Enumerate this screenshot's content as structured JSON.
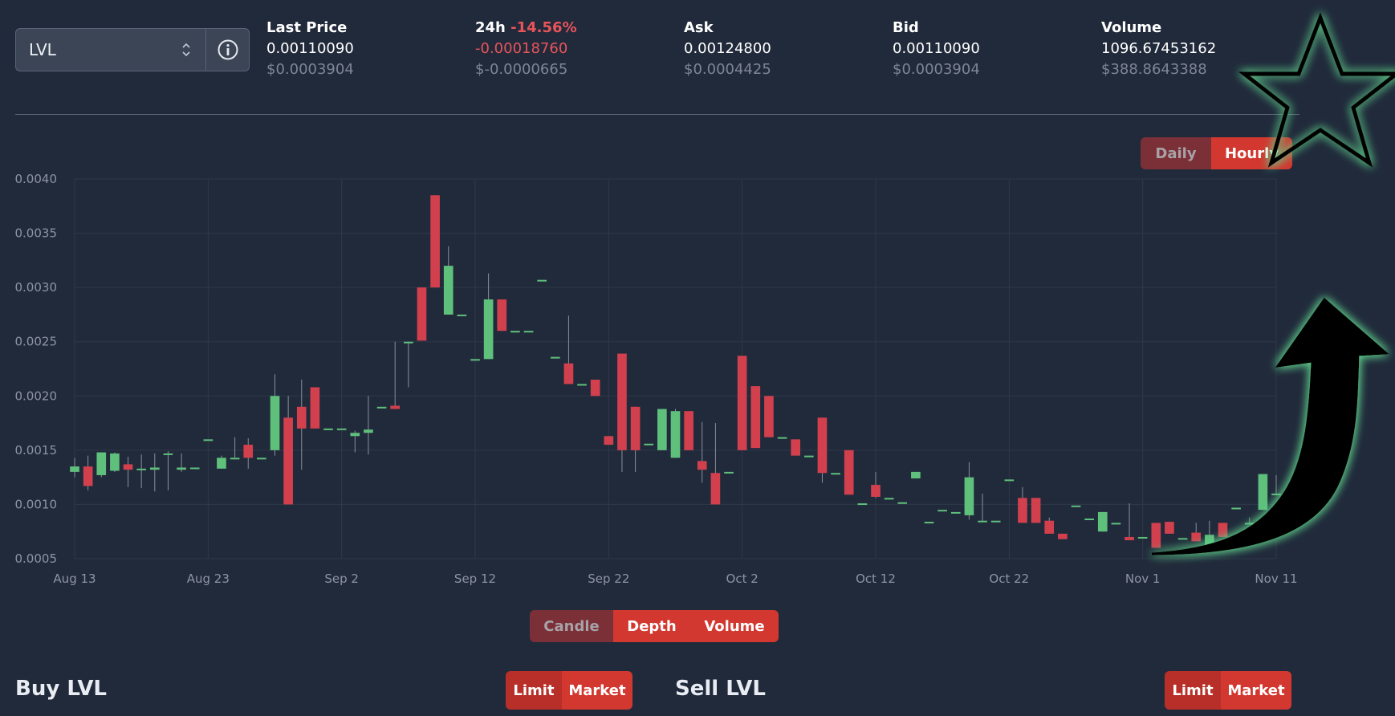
{
  "pair": {
    "symbol": "LVL"
  },
  "stats": {
    "last_price": {
      "label": "Last Price",
      "value": "0.00110090",
      "usd": "$0.0003904"
    },
    "change_24h": {
      "label": "24h",
      "percent": "-14.56%",
      "value": "-0.00018760",
      "usd": "$-0.0000665"
    },
    "ask": {
      "label": "Ask",
      "value": "0.00124800",
      "usd": "$0.0004425"
    },
    "bid": {
      "label": "Bid",
      "value": "0.00110090",
      "usd": "$0.0003904"
    },
    "volume": {
      "label": "Volume",
      "value": "1096.67453162",
      "usd": "$388.8643388"
    }
  },
  "interval_toggle": {
    "daily": "Daily",
    "hourly": "Hourly",
    "active": "Hourly"
  },
  "chart_mode": {
    "candle": "Candle",
    "depth": "Depth",
    "volume": "Volume",
    "active": "Candle"
  },
  "buy": {
    "title": "Buy LVL",
    "limit": "Limit",
    "market": "Market"
  },
  "sell": {
    "title": "Sell LVL",
    "limit": "Limit",
    "market": "Market"
  },
  "colors": {
    "background": "#212a3b",
    "accent": "#d2382f",
    "up_candle": "#5fc07c",
    "down_candle": "#d2404e",
    "negative_text": "#e8545a",
    "grid": "#2f3848",
    "axis_text": "#8d94a3"
  },
  "overlay_icons": [
    "star-outline-icon",
    "curved-up-arrow-icon"
  ],
  "chart_data": {
    "type": "candlestick",
    "ylim": [
      0.0005,
      0.004
    ],
    "y_ticks": [
      "0.0040",
      "0.0035",
      "0.0030",
      "0.0025",
      "0.0020",
      "0.0015",
      "0.0010",
      "0.0005"
    ],
    "x_ticks": [
      "Aug 13",
      "Aug 23",
      "Sep 2",
      "Sep 12",
      "Sep 22",
      "Oct 2",
      "Oct 12",
      "Oct 22",
      "Nov 1",
      "Nov 11"
    ],
    "x_start": "Aug 13",
    "candles": [
      {
        "o": 0.0013,
        "h": 0.00143,
        "l": 0.00125,
        "c": 0.00135
      },
      {
        "o": 0.00135,
        "h": 0.00145,
        "l": 0.00113,
        "c": 0.00117
      },
      {
        "o": 0.00127,
        "h": 0.00148,
        "l": 0.00125,
        "c": 0.00148
      },
      {
        "o": 0.00131,
        "h": 0.00148,
        "l": 0.0013,
        "c": 0.00147
      },
      {
        "o": 0.00137,
        "h": 0.00144,
        "l": 0.00116,
        "c": 0.00132
      },
      {
        "o": 0.00133,
        "h": 0.00146,
        "l": 0.00115,
        "c": 0.00133
      },
      {
        "o": 0.00132,
        "h": 0.00147,
        "l": 0.00112,
        "c": 0.00134
      },
      {
        "o": 0.00147,
        "h": 0.00149,
        "l": 0.00113,
        "c": 0.00147
      },
      {
        "o": 0.00132,
        "h": 0.00147,
        "l": 0.0013,
        "c": 0.00134
      },
      {
        "o": 0.00134,
        "h": 0.00134,
        "l": 0.00134,
        "c": 0.00134
      },
      {
        "o": 0.0016,
        "h": 0.0016,
        "l": 0.0016,
        "c": 0.0016
      },
      {
        "o": 0.00133,
        "h": 0.00145,
        "l": 0.00133,
        "c": 0.00143
      },
      {
        "o": 0.00143,
        "h": 0.00162,
        "l": 0.00143,
        "c": 0.00143
      },
      {
        "o": 0.00155,
        "h": 0.00161,
        "l": 0.00133,
        "c": 0.00143
      },
      {
        "o": 0.00143,
        "h": 0.00143,
        "l": 0.00143,
        "c": 0.00143
      },
      {
        "o": 0.0015,
        "h": 0.0022,
        "l": 0.00145,
        "c": 0.002
      },
      {
        "o": 0.0018,
        "h": 0.002,
        "l": 0.001,
        "c": 0.001
      },
      {
        "o": 0.0019,
        "h": 0.00215,
        "l": 0.00132,
        "c": 0.0017
      },
      {
        "o": 0.00208,
        "h": 0.00208,
        "l": 0.0017,
        "c": 0.0017
      },
      {
        "o": 0.0017,
        "h": 0.0017,
        "l": 0.0017,
        "c": 0.0017
      },
      {
        "o": 0.0017,
        "h": 0.0017,
        "l": 0.0017,
        "c": 0.0017
      },
      {
        "o": 0.00163,
        "h": 0.00168,
        "l": 0.00148,
        "c": 0.00166
      },
      {
        "o": 0.00166,
        "h": 0.002,
        "l": 0.00146,
        "c": 0.00169
      },
      {
        "o": 0.0019,
        "h": 0.0019,
        "l": 0.0019,
        "c": 0.0019
      },
      {
        "o": 0.00191,
        "h": 0.0025,
        "l": 0.00189,
        "c": 0.00188
      },
      {
        "o": 0.0025,
        "h": 0.0025,
        "l": 0.00208,
        "c": 0.0025
      },
      {
        "o": 0.003,
        "h": 0.003,
        "l": 0.00251,
        "c": 0.00251
      },
      {
        "o": 0.00385,
        "h": 0.00385,
        "l": 0.003,
        "c": 0.003
      },
      {
        "o": 0.00275,
        "h": 0.00338,
        "l": 0.00275,
        "c": 0.0032
      },
      {
        "o": 0.00275,
        "h": 0.00275,
        "l": 0.00275,
        "c": 0.00275
      },
      {
        "o": 0.00234,
        "h": 0.00234,
        "l": 0.00234,
        "c": 0.00234
      },
      {
        "o": 0.00234,
        "h": 0.00313,
        "l": 0.00234,
        "c": 0.00289
      },
      {
        "o": 0.00289,
        "h": 0.00289,
        "l": 0.0026,
        "c": 0.0026
      },
      {
        "o": 0.0026,
        "h": 0.0026,
        "l": 0.0026,
        "c": 0.0026
      },
      {
        "o": 0.0026,
        "h": 0.0026,
        "l": 0.0026,
        "c": 0.0026
      },
      {
        "o": 0.00307,
        "h": 0.00307,
        "l": 0.00307,
        "c": 0.00307
      },
      {
        "o": 0.00236,
        "h": 0.00236,
        "l": 0.00236,
        "c": 0.00236
      },
      {
        "o": 0.0023,
        "h": 0.00274,
        "l": 0.00211,
        "c": 0.00211
      },
      {
        "o": 0.00211,
        "h": 0.00211,
        "l": 0.00211,
        "c": 0.00211
      },
      {
        "o": 0.00215,
        "h": 0.00215,
        "l": 0.002,
        "c": 0.002
      },
      {
        "o": 0.00163,
        "h": 0.00163,
        "l": 0.00155,
        "c": 0.00155
      },
      {
        "o": 0.00239,
        "h": 0.00239,
        "l": 0.0013,
        "c": 0.0015
      },
      {
        "o": 0.0019,
        "h": 0.0019,
        "l": 0.0013,
        "c": 0.0015
      },
      {
        "o": 0.00156,
        "h": 0.00156,
        "l": 0.00156,
        "c": 0.00156
      },
      {
        "o": 0.0015,
        "h": 0.00188,
        "l": 0.0015,
        "c": 0.00188
      },
      {
        "o": 0.00143,
        "h": 0.00188,
        "l": 0.00143,
        "c": 0.00186
      },
      {
        "o": 0.00186,
        "h": 0.00186,
        "l": 0.0015,
        "c": 0.0015
      },
      {
        "o": 0.0014,
        "h": 0.00176,
        "l": 0.0012,
        "c": 0.00132
      },
      {
        "o": 0.00129,
        "h": 0.00175,
        "l": 0.001,
        "c": 0.001
      },
      {
        "o": 0.0013,
        "h": 0.0013,
        "l": 0.0013,
        "c": 0.0013
      },
      {
        "o": 0.00237,
        "h": 0.00237,
        "l": 0.0015,
        "c": 0.0015
      },
      {
        "o": 0.00209,
        "h": 0.00209,
        "l": 0.00152,
        "c": 0.00152
      },
      {
        "o": 0.002,
        "h": 0.002,
        "l": 0.00162,
        "c": 0.00162
      },
      {
        "o": 0.00162,
        "h": 0.00162,
        "l": 0.00162,
        "c": 0.00162
      },
      {
        "o": 0.0016,
        "h": 0.0016,
        "l": 0.00145,
        "c": 0.00145
      },
      {
        "o": 0.00145,
        "h": 0.00145,
        "l": 0.00145,
        "c": 0.00145
      },
      {
        "o": 0.0018,
        "h": 0.0018,
        "l": 0.0012,
        "c": 0.00129
      },
      {
        "o": 0.00129,
        "h": 0.00129,
        "l": 0.00129,
        "c": 0.00129
      },
      {
        "o": 0.0015,
        "h": 0.0015,
        "l": 0.00109,
        "c": 0.00109
      },
      {
        "o": 0.00101,
        "h": 0.00101,
        "l": 0.00101,
        "c": 0.00101
      },
      {
        "o": 0.00118,
        "h": 0.0013,
        "l": 0.00106,
        "c": 0.00107
      },
      {
        "o": 0.00106,
        "h": 0.00106,
        "l": 0.00106,
        "c": 0.00106
      },
      {
        "o": 0.00102,
        "h": 0.00102,
        "l": 0.00102,
        "c": 0.00102
      },
      {
        "o": 0.00124,
        "h": 0.0013,
        "l": 0.00124,
        "c": 0.0013
      },
      {
        "o": 0.00084,
        "h": 0.00084,
        "l": 0.00084,
        "c": 0.00084
      },
      {
        "o": 0.00095,
        "h": 0.00095,
        "l": 0.00095,
        "c": 0.00095
      },
      {
        "o": 0.00093,
        "h": 0.00093,
        "l": 0.00093,
        "c": 0.00093
      },
      {
        "o": 0.0009,
        "h": 0.00139,
        "l": 0.00086,
        "c": 0.00125
      },
      {
        "o": 0.00085,
        "h": 0.0011,
        "l": 0.00084,
        "c": 0.00085
      },
      {
        "o": 0.00085,
        "h": 0.00085,
        "l": 0.00085,
        "c": 0.00085
      },
      {
        "o": 0.00123,
        "h": 0.00123,
        "l": 0.00123,
        "c": 0.00123
      },
      {
        "o": 0.00106,
        "h": 0.00116,
        "l": 0.00083,
        "c": 0.00083
      },
      {
        "o": 0.00106,
        "h": 0.00106,
        "l": 0.00083,
        "c": 0.00083
      },
      {
        "o": 0.00085,
        "h": 0.00088,
        "l": 0.00073,
        "c": 0.00073
      },
      {
        "o": 0.00073,
        "h": 0.00073,
        "l": 0.00068,
        "c": 0.00068
      },
      {
        "o": 0.00099,
        "h": 0.00099,
        "l": 0.00099,
        "c": 0.00099
      },
      {
        "o": 0.00087,
        "h": 0.00087,
        "l": 0.00087,
        "c": 0.00087
      },
      {
        "o": 0.00075,
        "h": 0.00093,
        "l": 0.00075,
        "c": 0.00093
      },
      {
        "o": 0.00083,
        "h": 0.00083,
        "l": 0.00083,
        "c": 0.00083
      },
      {
        "o": 0.0007,
        "h": 0.00101,
        "l": 0.00067,
        "c": 0.00067
      },
      {
        "o": 0.0007,
        "h": 0.0007,
        "l": 0.0007,
        "c": 0.0007
      },
      {
        "o": 0.00083,
        "h": 0.00083,
        "l": 0.0006,
        "c": 0.0006
      },
      {
        "o": 0.00084,
        "h": 0.00084,
        "l": 0.00073,
        "c": 0.00073
      },
      {
        "o": 0.00069,
        "h": 0.00069,
        "l": 0.00069,
        "c": 0.00069
      },
      {
        "o": 0.00074,
        "h": 0.00083,
        "l": 0.00066,
        "c": 0.00066
      },
      {
        "o": 0.00062,
        "h": 0.00085,
        "l": 0.00062,
        "c": 0.00072
      },
      {
        "o": 0.00083,
        "h": 0.00083,
        "l": 0.0007,
        "c": 0.0007
      },
      {
        "o": 0.00097,
        "h": 0.00097,
        "l": 0.00097,
        "c": 0.00097
      },
      {
        "o": 0.00083,
        "h": 0.00088,
        "l": 0.00083,
        "c": 0.00083
      },
      {
        "o": 0.00095,
        "h": 0.00128,
        "l": 0.00095,
        "c": 0.00128
      },
      {
        "o": 0.0011,
        "h": 0.00127,
        "l": 0.0011,
        "c": 0.0011
      }
    ]
  }
}
